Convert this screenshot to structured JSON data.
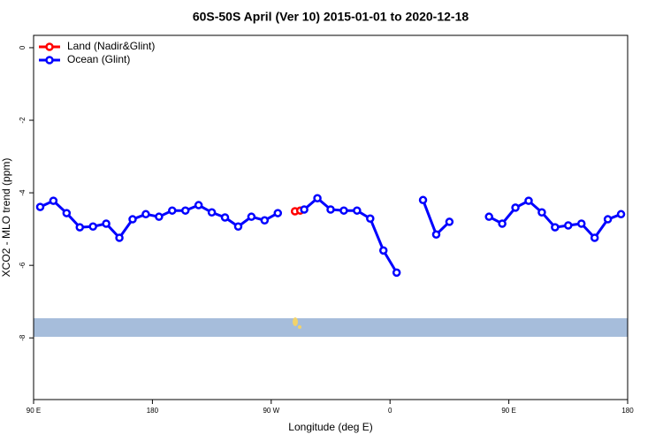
{
  "chart_data": {
    "type": "line",
    "title": "60S-50S April (Ver 10)   2015-01-01 to 2020-12-18",
    "xlabel": "Longitude (deg E)",
    "ylabel": "XCO2 - MLO trend (ppm)",
    "xlim": [
      90,
      540
    ],
    "ylim": [
      -9.7,
      0.34
    ],
    "xticks": [
      {
        "value": 90,
        "label": "90 E"
      },
      180,
      {
        "value": 270,
        "label": "90 W"
      },
      {
        "value": 360,
        "label": "0"
      },
      {
        "value": 450,
        "label": "90 E"
      },
      {
        "value": 540,
        "label": "180"
      }
    ],
    "yticks": [
      0,
      -2,
      -4,
      -6,
      -8
    ],
    "legend": "top-left",
    "series": [
      {
        "name": "Land (Nadir&Glint)",
        "color": "#ff0000",
        "x": [
          288,
          292
        ],
        "values": [
          -4.51,
          -4.49
        ]
      },
      {
        "name": "Ocean (Glint)",
        "color": "#0000ff",
        "x": [
          95,
          105,
          115,
          125,
          135,
          145,
          155,
          165,
          175,
          185,
          195,
          205,
          215,
          225,
          235,
          245,
          255,
          265,
          275,
          285,
          295,
          305,
          315,
          325,
          335,
          345,
          355,
          365,
          375,
          385,
          395,
          405,
          415,
          425,
          435,
          445,
          455,
          465,
          475,
          485,
          495,
          505,
          515,
          525,
          535
        ],
        "values": [
          -4.39,
          -4.22,
          -4.56,
          -4.95,
          -4.93,
          -4.85,
          -5.24,
          -4.73,
          -4.59,
          -4.66,
          -4.49,
          -4.49,
          -4.34,
          -4.54,
          -4.68,
          -4.93,
          -4.66,
          -4.76,
          -4.56,
          null,
          -4.46,
          -4.15,
          -4.46,
          -4.49,
          -4.49,
          -4.71,
          -5.59,
          -6.2,
          null,
          -4.2,
          -5.15,
          -4.8,
          null,
          null,
          -4.66,
          -4.85,
          -4.41,
          -4.22,
          -4.54,
          -4.95,
          -4.9,
          -4.85,
          -5.24,
          -4.73,
          -4.59
        ]
      }
    ]
  }
}
